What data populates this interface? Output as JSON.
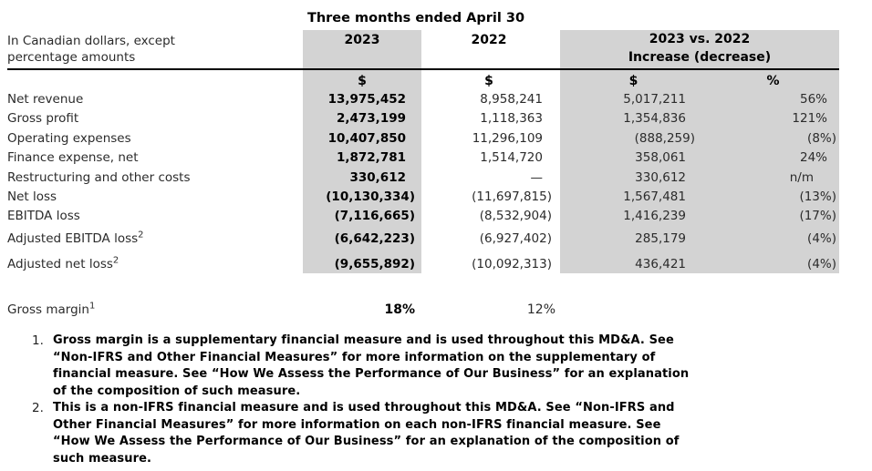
{
  "colors": {
    "shade": "#d3d3d3",
    "text": "#000000",
    "rule": "#000000"
  },
  "table": {
    "period_header": "Three months ended April 30",
    "unit_note": [
      "In Canadian dollars, except",
      "percentage amounts"
    ],
    "columns": {
      "y2023": "2023",
      "y2022": "2022",
      "vs_line1": "2023 vs. 2022",
      "vs_line2": "Increase (decrease)",
      "dollar_2023": "$",
      "dollar_2022": "$",
      "dollar_change": "$",
      "percent_change": "%"
    },
    "rows": [
      {
        "label": "Net revenue",
        "y2023": "13,975,452",
        "y2022": "8,958,241",
        "chg": "5,017,211",
        "pct": "56%"
      },
      {
        "label": "Gross profit",
        "y2023": "2,473,199",
        "y2022": "1,118,363",
        "chg": "1,354,836",
        "pct": "121%"
      },
      {
        "label": "Operating expenses",
        "y2023": "10,407,850",
        "y2022": "11,296,109",
        "chg": "(888,259)",
        "pct": "(8%)"
      },
      {
        "label": "Finance expense, net",
        "y2023": "1,872,781",
        "y2022": "1,514,720",
        "chg": "358,061",
        "pct": "24%"
      },
      {
        "label": "Restructuring and other costs",
        "y2023": "330,612",
        "y2022": "—",
        "chg": "330,612",
        "pct": "n/m"
      },
      {
        "label": "Net loss",
        "y2023": "(10,130,334)",
        "y2022": "(11,697,815)",
        "chg": "1,567,481",
        "pct": "(13%)"
      },
      {
        "label": "EBITDA loss",
        "y2023": "(7,116,665)",
        "y2022": "(8,532,904)",
        "chg": "1,416,239",
        "pct": "(17%)"
      },
      {
        "label": "Adjusted EBITDA loss",
        "sup": "2",
        "y2023": "(6,642,223)",
        "y2022": "(6,927,402)",
        "chg": "285,179",
        "pct": "(4%)"
      },
      {
        "label": "Adjusted net loss",
        "sup": "2",
        "y2023": "(9,655,892)",
        "y2022": "(10,092,313)",
        "chg": "436,421",
        "pct": "(4%)"
      }
    ],
    "gross_margin": {
      "label": "Gross margin",
      "sup": "1",
      "y2023": "18%",
      "y2022": "12%"
    }
  },
  "footnotes": [
    {
      "num": "1.",
      "lines": [
        "Gross margin is a supplementary financial measure and is used throughout this MD&A. See",
        "“Non-IFRS and Other Financial Measures” for more information on the supplementary of",
        "financial measure. See “How We Assess the Performance of Our Business” for an explanation",
        "of the composition of such measure."
      ]
    },
    {
      "num": "2.",
      "lines": [
        "This is a non-IFRS financial measure and is used throughout this MD&A. See “Non-IFRS and",
        "Other Financial Measures” for more information on each non-IFRS financial measure. See",
        "“How We Assess the Performance of Our Business” for an explanation of the composition of",
        "such measure."
      ]
    }
  ]
}
